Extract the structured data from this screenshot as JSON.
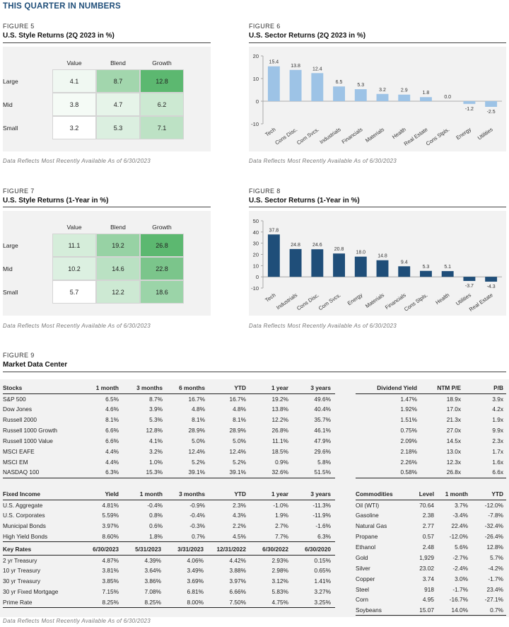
{
  "page_title": "THIS QUARTER IN NUMBERS",
  "note": "Data Reflects Most Recently Available As of 6/30/2023",
  "fig5": {
    "label": "FIGURE 5",
    "title": "U.S. Style Returns (2Q 2023 in %)",
    "columns": [
      "Value",
      "Blend",
      "Growth"
    ],
    "rows": [
      {
        "name": "Large",
        "values": [
          "4.1",
          "8.7",
          "12.8"
        ]
      },
      {
        "name": "Mid",
        "values": [
          "3.8",
          "4.7",
          "6.2"
        ]
      },
      {
        "name": "Small",
        "values": [
          "3.2",
          "5.3",
          "7.1"
        ]
      }
    ]
  },
  "fig7": {
    "label": "FIGURE 7",
    "title": "U.S. Style Returns (1-Year in %)",
    "columns": [
      "Value",
      "Blend",
      "Growth"
    ],
    "rows": [
      {
        "name": "Large",
        "values": [
          "11.1",
          "19.2",
          "26.8"
        ]
      },
      {
        "name": "Mid",
        "values": [
          "10.2",
          "14.6",
          "22.8"
        ]
      },
      {
        "name": "Small",
        "values": [
          "5.7",
          "12.2",
          "18.6"
        ]
      }
    ]
  },
  "chart_data": [
    {
      "type": "bar",
      "label": "FIGURE 6",
      "title": "U.S. Sector Returns (2Q 2023 in %)",
      "categories": [
        "Tech",
        "Cons Disc.",
        "Com Svcs.",
        "Industrials",
        "Financials",
        "Materials",
        "Health",
        "Real Estate",
        "Cons Stpls.",
        "Energy",
        "Utilities"
      ],
      "values": [
        15.4,
        13.8,
        12.4,
        6.5,
        5.3,
        3.2,
        2.9,
        1.8,
        0.0,
        -1.2,
        -2.5
      ],
      "labels": [
        "15.4",
        "13.8",
        "12.4",
        "6.5",
        "5.3",
        "3.2",
        "2.9",
        "1.8",
        "0.0",
        "-1.2",
        "-2.5"
      ],
      "ylim": [
        -10,
        20
      ],
      "yticks": [
        -10,
        0,
        10,
        20
      ],
      "color": "#9dc3e6"
    },
    {
      "type": "bar",
      "label": "FIGURE 8",
      "title": "U.S. Sector Returns (1-Year in %)",
      "categories": [
        "Tech",
        "Industrials",
        "Cons Disc.",
        "Com Svcs.",
        "Energy",
        "Materials",
        "Financials",
        "Cons Stpls.",
        "Health",
        "Utilities",
        "Real Estate"
      ],
      "values": [
        37.8,
        24.8,
        24.6,
        20.8,
        18.0,
        14.8,
        9.4,
        5.3,
        5.1,
        -3.7,
        -4.3
      ],
      "labels": [
        "37.8",
        "24.8",
        "24.6",
        "20.8",
        "18.0",
        "14.8",
        "9.4",
        "5.3",
        "5.1",
        "-3.7",
        "-4.3"
      ],
      "ylim": [
        -10,
        50
      ],
      "yticks": [
        -10,
        0,
        10,
        20,
        30,
        40,
        50
      ],
      "color": "#1f4e79"
    }
  ],
  "fig9": {
    "label": "FIGURE 9",
    "title": "Market Data Center",
    "stocks": {
      "headers": [
        "Stocks",
        "1 month",
        "3 months",
        "6 months",
        "YTD",
        "1 year",
        "3 years"
      ],
      "rows": [
        [
          "S&P 500",
          "6.5%",
          "8.7%",
          "16.7%",
          "16.7%",
          "19.2%",
          "49.6%"
        ],
        [
          "Dow Jones",
          "4.6%",
          "3.9%",
          "4.8%",
          "4.8%",
          "13.8%",
          "40.4%"
        ],
        [
          "Russell 2000",
          "8.1%",
          "5.3%",
          "8.1%",
          "8.1%",
          "12.2%",
          "35.7%"
        ],
        [
          "Russell 1000 Growth",
          "6.6%",
          "12.8%",
          "28.9%",
          "28.9%",
          "26.8%",
          "46.1%"
        ],
        [
          "Russell 1000 Value",
          "6.6%",
          "4.1%",
          "5.0%",
          "5.0%",
          "11.1%",
          "47.9%"
        ],
        [
          "MSCI EAFE",
          "4.4%",
          "3.2%",
          "12.4%",
          "12.4%",
          "18.5%",
          "29.6%"
        ],
        [
          "MSCI EM",
          "4.4%",
          "1.0%",
          "5.2%",
          "5.2%",
          "0.9%",
          "5.8%"
        ],
        [
          "NASDAQ 100",
          "6.3%",
          "15.3%",
          "39.1%",
          "39.1%",
          "32.6%",
          "51.5%"
        ]
      ]
    },
    "dividends": {
      "headers": [
        "Dividend Yield",
        "NTM P/E",
        "P/B"
      ],
      "rows": [
        [
          "1.47%",
          "18.9x",
          "3.9x"
        ],
        [
          "1.92%",
          "17.0x",
          "4.2x"
        ],
        [
          "1.51%",
          "21.3x",
          "1.9x"
        ],
        [
          "0.75%",
          "27.0x",
          "9.9x"
        ],
        [
          "2.09%",
          "14.5x",
          "2.3x"
        ],
        [
          "2.18%",
          "13.0x",
          "1.7x"
        ],
        [
          "2.26%",
          "12.3x",
          "1.6x"
        ],
        [
          "0.58%",
          "26.8x",
          "6.6x"
        ]
      ]
    },
    "fixed_income": {
      "headers": [
        "Fixed Income",
        "Yield",
        "1 month",
        "3 months",
        "YTD",
        "1 year",
        "3 years"
      ],
      "rows": [
        [
          "U.S. Aggregate",
          "4.81%",
          "-0.4%",
          "-0.9%",
          "2.3%",
          "-1.0%",
          "-11.3%"
        ],
        [
          "U.S. Corporates",
          "5.59%",
          "0.8%",
          "-0.4%",
          "4.3%",
          "1.9%",
          "-11.9%"
        ],
        [
          "Municipal Bonds",
          "3.97%",
          "0.6%",
          "-0.3%",
          "2.2%",
          "2.7%",
          "-1.6%"
        ],
        [
          "High Yield Bonds",
          "8.60%",
          "1.8%",
          "0.7%",
          "4.5%",
          "7.7%",
          "6.3%"
        ]
      ]
    },
    "key_rates": {
      "headers": [
        "Key Rates",
        "6/30/2023",
        "5/31/2023",
        "3/31/2023",
        "12/31/2022",
        "6/30/2022",
        "6/30/2020"
      ],
      "rows": [
        [
          "2 yr Treasury",
          "4.87%",
          "4.39%",
          "4.06%",
          "4.42%",
          "2.93%",
          "0.15%"
        ],
        [
          "10 yr Treasury",
          "3.81%",
          "3.64%",
          "3.49%",
          "3.88%",
          "2.98%",
          "0.65%"
        ],
        [
          "30 yr Treasury",
          "3.85%",
          "3.86%",
          "3.69%",
          "3.97%",
          "3.12%",
          "1.41%"
        ],
        [
          "30 yr Fixed Mortgage",
          "7.15%",
          "7.08%",
          "6.81%",
          "6.66%",
          "5.83%",
          "3.27%"
        ],
        [
          "Prime Rate",
          "8.25%",
          "8.25%",
          "8.00%",
          "7.50%",
          "4.75%",
          "3.25%"
        ]
      ]
    },
    "commodities": {
      "headers": [
        "Commodities",
        "Level",
        "1 month",
        "YTD"
      ],
      "rows": [
        [
          "Oil (WTI)",
          "70.64",
          "3.7%",
          "-12.0%"
        ],
        [
          "Gasoline",
          "2.38",
          "-3.4%",
          "-7.8%"
        ],
        [
          "Natural Gas",
          "2.77",
          "22.4%",
          "-32.4%"
        ],
        [
          "Propane",
          "0.57",
          "-12.0%",
          "-26.4%"
        ],
        [
          "Ethanol",
          "2.48",
          "5.6%",
          "12.8%"
        ],
        [
          "Gold",
          "1,929",
          "-2.7%",
          "5.7%"
        ],
        [
          "Silver",
          "23.02",
          "-2.4%",
          "-4.2%"
        ],
        [
          "Copper",
          "3.74",
          "3.0%",
          "-1.7%"
        ],
        [
          "Steel",
          "918",
          "-1.7%",
          "23.4%"
        ],
        [
          "Corn",
          "4.95",
          "-16.7%",
          "-27.1%"
        ],
        [
          "Soybeans",
          "15.07",
          "14.0%",
          "0.7%"
        ]
      ]
    }
  },
  "colors": {
    "heat_low": "#ffffff",
    "heat_high": "#5cb870",
    "bar_light": "#9dc3e6",
    "bar_dark": "#1f4e79",
    "title_blue": "#1f4e79"
  }
}
